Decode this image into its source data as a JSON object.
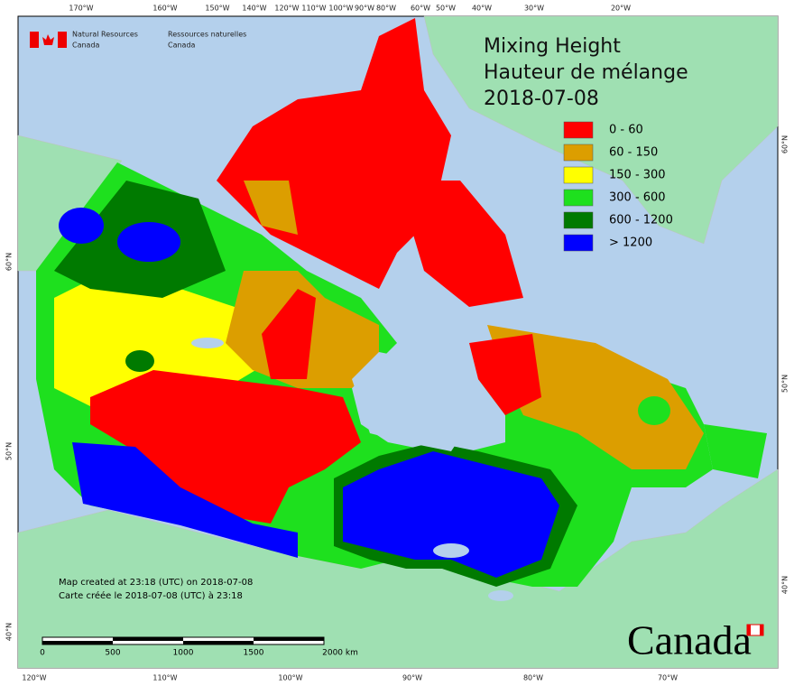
{
  "logo": {
    "en_line1": "Natural Resources",
    "en_line2": "Canada",
    "fr_line1": "Ressources naturelles",
    "fr_line2": "Canada"
  },
  "title": {
    "lines": [
      "Mixing Height",
      "Hauteur de mélange",
      "2018-07-08"
    ]
  },
  "legend": {
    "items": [
      {
        "label": "0 - 60",
        "color": "#ff0000"
      },
      {
        "label": "60 - 150",
        "color": "#dc9e00"
      },
      {
        "label": "150 - 300",
        "color": "#ffff00"
      },
      {
        "label": "300 - 600",
        "color": "#1ee01e"
      },
      {
        "label": "600 - 1200",
        "color": "#007a00"
      },
      {
        "label": "> 1200",
        "color": "#0000ff"
      }
    ]
  },
  "graticule": {
    "top": [
      "170°W",
      "160°W",
      "150°W",
      "140°W",
      "120°W",
      "110°W",
      "100°W",
      "90°W",
      "80°W",
      "60°W",
      "50°W",
      "40°W",
      "30°W",
      "20°W"
    ],
    "bottom": [
      "120°W",
      "110°W",
      "100°W",
      "90°W",
      "80°W",
      "70°W"
    ],
    "left": [
      "60°N",
      "50°N",
      "40°N"
    ],
    "right": [
      "60°N",
      "50°N",
      "40°N"
    ]
  },
  "notes": [
    "Map created at 23:18 (UTC) on 2018-07-08",
    "Carte créée le 2018-07-08 (UTC) à 23:18"
  ],
  "scale_bar": {
    "labels": [
      "0",
      "500",
      "1000",
      "1500",
      "2000 km"
    ]
  },
  "wordmark": "Canada"
}
